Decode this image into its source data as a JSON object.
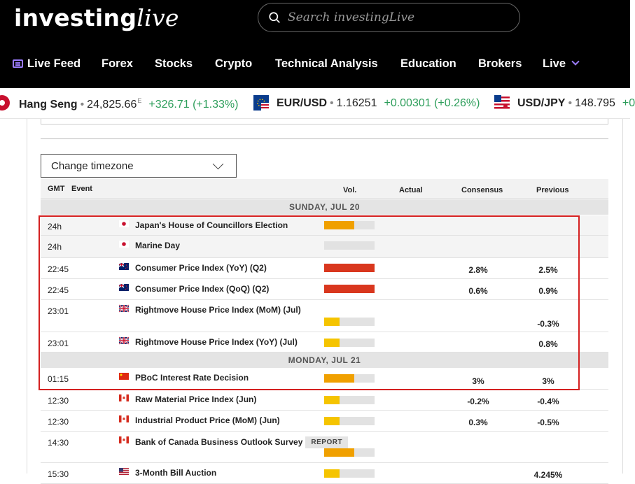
{
  "header": {
    "logo_main": "investing",
    "logo_accent": "live",
    "search_placeholder": "Search investingLive"
  },
  "nav": {
    "items": [
      {
        "label": "Live Feed"
      },
      {
        "label": "Forex"
      },
      {
        "label": "Stocks"
      },
      {
        "label": "Crypto"
      },
      {
        "label": "Technical Analysis"
      },
      {
        "label": "Education"
      },
      {
        "label": "Brokers"
      },
      {
        "label": "Live"
      }
    ]
  },
  "ticker": [
    {
      "name": "Hang Seng",
      "price": "24,825.66",
      "sup": "E",
      "change": "+326.71 (+1.33%)"
    },
    {
      "name": "EUR/USD",
      "price": "1.16251",
      "sup": "",
      "change": "+0.00301 (+0.26%)"
    },
    {
      "name": "USD/JPY",
      "price": "148.795",
      "sup": "",
      "change": "+0"
    }
  ],
  "calendar": {
    "timezone_label": "Change timezone",
    "columns": {
      "gmt": "GMT",
      "event": "Event",
      "vol": "Vol.",
      "actual": "Actual",
      "consensus": "Consensus",
      "previous": "Previous"
    },
    "days": [
      "SUNDAY, JUL 20",
      "MONDAY, JUL 21"
    ],
    "rows": [
      {
        "time": "24h",
        "country": "JP",
        "event": "Japan's House of Councillors Election",
        "volume": 0.6,
        "vol_color": "#f0a000",
        "consensus": "",
        "previous": ""
      },
      {
        "time": "24h",
        "country": "JP",
        "event": "Marine Day",
        "volume": 0,
        "vol_color": "#f0a000",
        "consensus": "",
        "previous": ""
      },
      {
        "time": "22:45",
        "country": "NZ",
        "event": "Consumer Price Index (YoY) (Q2)",
        "volume": 1.0,
        "vol_color": "#d9371e",
        "consensus": "2.8%",
        "previous": "2.5%"
      },
      {
        "time": "22:45",
        "country": "NZ",
        "event": "Consumer Price Index (QoQ) (Q2)",
        "volume": 1.0,
        "vol_color": "#d9371e",
        "consensus": "0.6%",
        "previous": "0.9%"
      },
      {
        "time": "23:01",
        "country": "GB",
        "event": "Rightmove House Price Index (MoM) (Jul)",
        "volume": 0.3,
        "vol_color": "#f5c400",
        "consensus": "",
        "previous": "-0.3%"
      },
      {
        "time": "23:01",
        "country": "GB",
        "event": "Rightmove House Price Index (YoY) (Jul)",
        "volume": 0.3,
        "vol_color": "#f5c400",
        "consensus": "",
        "previous": "0.8%"
      },
      {
        "time": "01:15",
        "country": "CN",
        "event": "PBoC Interest Rate Decision",
        "volume": 0.6,
        "vol_color": "#f0a000",
        "consensus": "3%",
        "previous": "3%"
      },
      {
        "time": "12:30",
        "country": "CA",
        "event": "Raw Material Price Index (Jun)",
        "volume": 0.3,
        "vol_color": "#f5c400",
        "consensus": "-0.2%",
        "previous": "-0.4%"
      },
      {
        "time": "12:30",
        "country": "CA",
        "event": "Industrial Product Price (MoM) (Jun)",
        "volume": 0.3,
        "vol_color": "#f5c400",
        "consensus": "0.3%",
        "previous": "-0.5%"
      },
      {
        "time": "14:30",
        "country": "CA",
        "event": "Bank of Canada Business Outlook Survey",
        "badge": "REPORT",
        "volume": 0.6,
        "vol_color": "#f0a000",
        "consensus": "",
        "previous": ""
      },
      {
        "time": "15:30",
        "country": "US",
        "event": "3-Month Bill Auction",
        "volume": 0.3,
        "vol_color": "#f5c400",
        "consensus": "",
        "previous": "4.245%"
      }
    ]
  }
}
